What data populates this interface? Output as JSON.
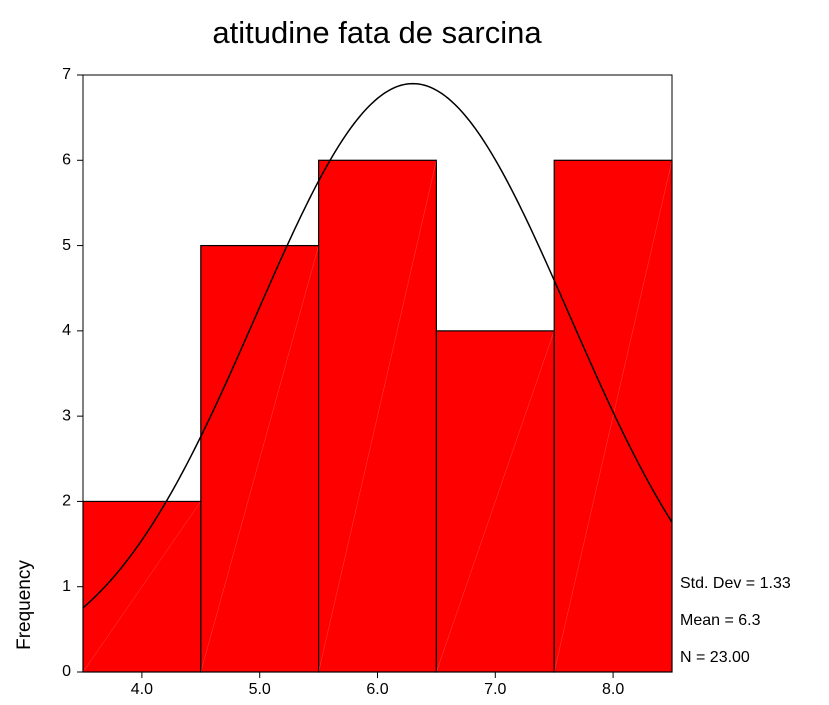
{
  "chart_data": {
    "type": "histogram",
    "title": "atitudine fata de sarcina",
    "y_label": "Frequency",
    "bins": [
      3.5,
      4.5,
      5.5,
      6.5,
      7.5,
      8.5
    ],
    "values": [
      2,
      5,
      6,
      4,
      6
    ],
    "color": "#ff0000",
    "xlim": [
      3.5,
      8.5
    ],
    "xticks": [
      {
        "value": 4,
        "label": "4.0"
      },
      {
        "value": 5,
        "label": "5.0"
      },
      {
        "value": 6,
        "label": "6.0"
      },
      {
        "value": 7,
        "label": "7.0"
      },
      {
        "value": 8,
        "label": "8.0"
      }
    ],
    "ylim": [
      0,
      7
    ],
    "yticks": [
      0,
      1,
      2,
      3,
      4,
      5,
      6,
      7
    ],
    "annotations": [
      {
        "label": "Std. Dev = 1.33",
        "value": 1.33
      },
      {
        "label": "Mean = 6.3",
        "value": 6.3
      },
      {
        "label": "N = 23.00",
        "value": 23
      }
    ]
  }
}
